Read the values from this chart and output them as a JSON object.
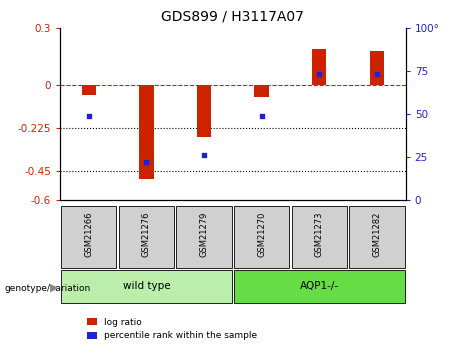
{
  "title": "GDS899 / H3117A07",
  "samples": [
    "GSM21266",
    "GSM21276",
    "GSM21279",
    "GSM21270",
    "GSM21273",
    "GSM21282"
  ],
  "log_ratio": [
    -0.05,
    -0.49,
    -0.27,
    -0.06,
    0.19,
    0.18
  ],
  "percentile_rank": [
    49,
    22,
    26,
    49,
    73,
    73
  ],
  "bar_color": "#cc2200",
  "dot_color": "#2222cc",
  "ylim_left": [
    -0.6,
    0.3
  ],
  "ylim_right": [
    0,
    100
  ],
  "yticks_left": [
    0.3,
    0,
    -0.225,
    -0.45,
    -0.6
  ],
  "yticks_right": [
    100,
    75,
    50,
    25,
    0
  ],
  "hlines": [
    0,
    -0.225,
    -0.45
  ],
  "hline_styles": [
    "dashed",
    "dotted",
    "dotted"
  ],
  "hline_colors": [
    "#cc2200",
    "black",
    "black"
  ],
  "groups": [
    {
      "label": "wild type",
      "start": 0,
      "end": 2,
      "color": "#bbeeaa"
    },
    {
      "label": "AQP1-/-",
      "start": 3,
      "end": 5,
      "color": "#66dd44"
    }
  ],
  "genotype_label": "genotype/variation",
  "legend_entries": [
    "log ratio",
    "percentile rank within the sample"
  ],
  "background_color": "#ffffff",
  "title_fontsize": 10,
  "tick_fontsize": 7.5,
  "bar_width": 0.25
}
